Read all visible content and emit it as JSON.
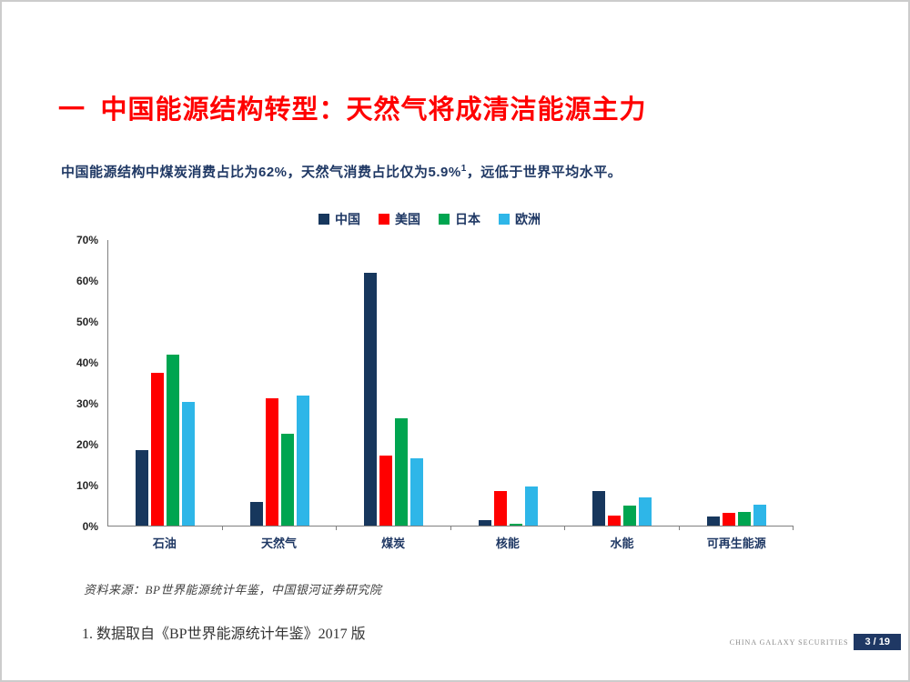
{
  "slide": {
    "title": "一  中国能源结构转型：天然气将成清洁能源主力",
    "subtitle": {
      "before_sup": "中国能源结构中煤炭消费占比为62%，天然气消费占比仅为5.9%",
      "sup": "1",
      "after_sup": "，远低于世界平均水平。"
    },
    "source": "资料来源：BP世界能源统计年鉴，中国银河证券研究院",
    "footnote": "1. 数据取自《BP世界能源统计年鉴》2017 版",
    "footer": {
      "company": "CHINA GALAXY SECURITIES",
      "page": "3 / 19"
    }
  },
  "chart_data": {
    "type": "bar",
    "title": "",
    "categories": [
      "石油",
      "天然气",
      "煤炭",
      "核能",
      "水能",
      "可再生能源"
    ],
    "series": [
      {
        "name": "中国",
        "color": "#17375d",
        "values": [
          18.6,
          5.9,
          62.0,
          1.3,
          8.5,
          2.2
        ]
      },
      {
        "name": "美国",
        "color": "#ff0000",
        "values": [
          37.5,
          31.3,
          17.2,
          8.5,
          2.5,
          3.1
        ]
      },
      {
        "name": "日本",
        "color": "#00a550",
        "values": [
          42.0,
          22.6,
          26.4,
          0.5,
          4.9,
          3.4
        ]
      },
      {
        "name": "欧洲",
        "color": "#2eb6e8",
        "values": [
          30.3,
          31.8,
          16.5,
          9.6,
          6.9,
          5.1
        ]
      }
    ],
    "xlabel": "",
    "ylabel": "",
    "ylim": [
      0,
      70
    ],
    "yticks": [
      "0%",
      "10%",
      "20%",
      "30%",
      "40%",
      "50%",
      "60%",
      "70%"
    ],
    "legend_position": "top",
    "grid": false
  }
}
